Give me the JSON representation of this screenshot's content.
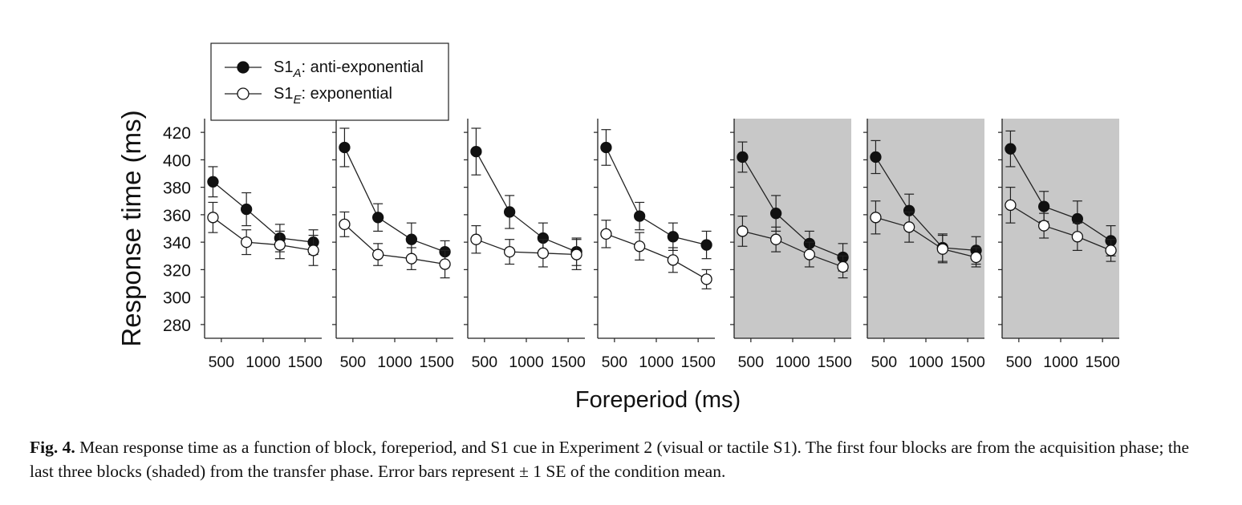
{
  "chart_data": {
    "type": "line",
    "ylabel": "Response time (ms)",
    "xlabel": "Foreperiod (ms)",
    "ylim": [
      270,
      430
    ],
    "yticks": [
      280,
      300,
      320,
      340,
      360,
      380,
      400,
      420
    ],
    "xlim": [
      300,
      1700
    ],
    "xticks": [
      500,
      1000,
      1500
    ],
    "x": [
      400,
      800,
      1200,
      1600
    ],
    "legend": {
      "position": "top-left",
      "entries": [
        {
          "key": "A",
          "label_main": "S1",
          "label_sub": "A",
          "label_rest": ": anti-exponential",
          "marker": "filled"
        },
        {
          "key": "E",
          "label_main": "S1",
          "label_sub": "E",
          "label_rest": ": exponential",
          "marker": "open"
        }
      ]
    },
    "colors": {
      "line": "#222222",
      "filled_marker": "#111111",
      "open_marker": "#ffffff",
      "shade": "#c8c8c8"
    },
    "panels": [
      {
        "shaded": false,
        "series": [
          {
            "key": "A",
            "values": [
              384,
              364,
              343,
              340
            ],
            "se": [
              11,
              12,
              10,
              9
            ]
          },
          {
            "key": "E",
            "values": [
              358,
              340,
              338,
              334
            ],
            "se": [
              11,
              9,
              10,
              11
            ]
          }
        ]
      },
      {
        "shaded": false,
        "series": [
          {
            "key": "A",
            "values": [
              409,
              358,
              342,
              333
            ],
            "se": [
              14,
              10,
              12,
              8
            ]
          },
          {
            "key": "E",
            "values": [
              353,
              331,
              328,
              324
            ],
            "se": [
              9,
              8,
              8,
              10
            ]
          }
        ]
      },
      {
        "shaded": false,
        "series": [
          {
            "key": "A",
            "values": [
              406,
              362,
              343,
              333
            ],
            "se": [
              17,
              12,
              11,
              10
            ]
          },
          {
            "key": "E",
            "values": [
              342,
              333,
              332,
              331
            ],
            "se": [
              10,
              9,
              10,
              11
            ]
          }
        ]
      },
      {
        "shaded": false,
        "series": [
          {
            "key": "A",
            "values": [
              409,
              359,
              344,
              338
            ],
            "se": [
              13,
              10,
              10,
              10
            ]
          },
          {
            "key": "E",
            "values": [
              346,
              337,
              327,
              313
            ],
            "se": [
              10,
              10,
              9,
              7
            ]
          }
        ]
      },
      {
        "shaded": true,
        "series": [
          {
            "key": "A",
            "values": [
              402,
              361,
              339,
              329
            ],
            "se": [
              11,
              13,
              9,
              10
            ]
          },
          {
            "key": "E",
            "values": [
              348,
              342,
              331,
              322
            ],
            "se": [
              11,
              9,
              9,
              8
            ]
          }
        ]
      },
      {
        "shaded": true,
        "series": [
          {
            "key": "A",
            "values": [
              402,
              363,
              336,
              334
            ],
            "se": [
              12,
              12,
              10,
              10
            ]
          },
          {
            "key": "E",
            "values": [
              358,
              351,
              335,
              329
            ],
            "se": [
              12,
              11,
              10,
              7
            ]
          }
        ]
      },
      {
        "shaded": true,
        "series": [
          {
            "key": "A",
            "values": [
              408,
              366,
              357,
              341
            ],
            "se": [
              13,
              11,
              13,
              11
            ]
          },
          {
            "key": "E",
            "values": [
              367,
              352,
              344,
              334
            ],
            "se": [
              13,
              9,
              10,
              8
            ]
          }
        ]
      }
    ]
  },
  "caption": {
    "label": "Fig. 4.",
    "text": " Mean response time as a function of block, foreperiod, and S1 cue in Experiment 2 (visual or tactile S1). The first four blocks are from the acquisition phase; the last three blocks (shaded) from the transfer phase. Error bars represent ± 1 SE of the condition mean."
  }
}
